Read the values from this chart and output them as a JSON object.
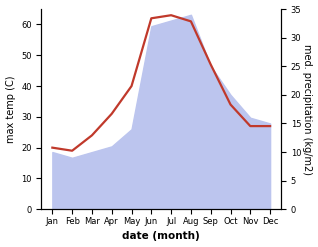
{
  "months": [
    "Jan",
    "Feb",
    "Mar",
    "Apr",
    "May",
    "Jun",
    "Jul",
    "Aug",
    "Sep",
    "Oct",
    "Nov",
    "Dec"
  ],
  "temp": [
    20,
    19,
    24,
    31,
    40,
    62,
    63,
    61,
    47,
    34,
    27,
    27
  ],
  "precip": [
    10,
    9,
    10,
    11,
    14,
    32,
    33,
    34,
    25,
    20,
    16,
    15
  ],
  "temp_color": "#c0392b",
  "precip_fill_color": "#bcc5ee",
  "temp_ylim": [
    0,
    65
  ],
  "precip_ylim": [
    0,
    35
  ],
  "temp_yticks": [
    0,
    10,
    20,
    30,
    40,
    50,
    60
  ],
  "precip_yticks": [
    0,
    5,
    10,
    15,
    20,
    25,
    30,
    35
  ],
  "ylabel_left": "max temp (C)",
  "ylabel_right": "med. precipitation (kg/m2)",
  "xlabel": "date (month)",
  "bg_color": "#ffffff",
  "linewidth": 1.6,
  "font_size_ticks": 6,
  "font_size_label": 7,
  "font_size_xlabel": 7.5
}
